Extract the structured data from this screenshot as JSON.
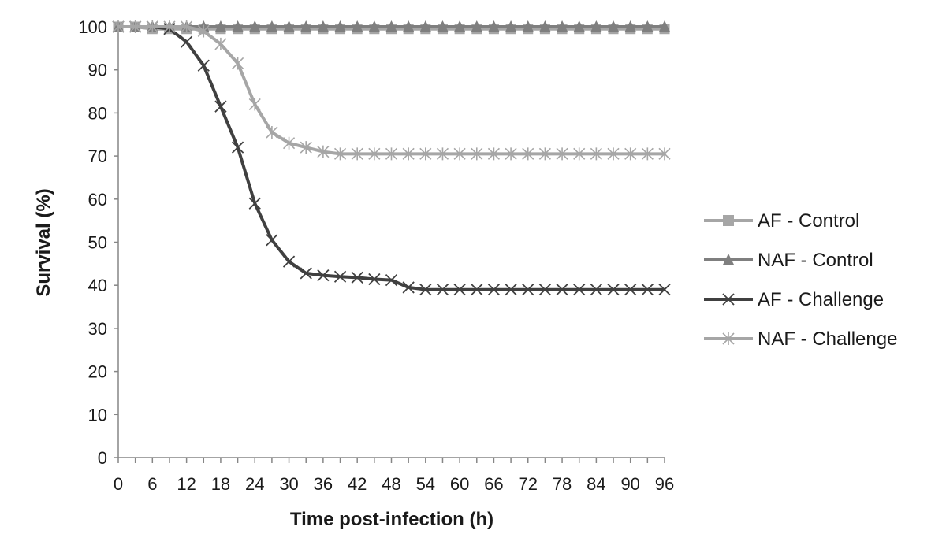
{
  "chart_data": {
    "type": "line",
    "title": "",
    "xlabel": "Time post-infection (h)",
    "ylabel": "Survival (%)",
    "xlim": [
      0,
      96
    ],
    "ylim": [
      0,
      100
    ],
    "x_ticks": [
      0,
      6,
      12,
      18,
      24,
      30,
      36,
      42,
      48,
      54,
      60,
      66,
      72,
      78,
      84,
      90,
      96
    ],
    "y_ticks": [
      0,
      10,
      20,
      30,
      40,
      50,
      60,
      70,
      80,
      90,
      100
    ],
    "x": [
      0,
      3,
      6,
      9,
      12,
      15,
      18,
      21,
      24,
      27,
      30,
      33,
      36,
      39,
      42,
      45,
      48,
      51,
      54,
      57,
      60,
      63,
      66,
      69,
      72,
      75,
      78,
      81,
      84,
      87,
      90,
      93,
      96
    ],
    "grid": false,
    "legend_position": "right",
    "series": [
      {
        "name": "AF - Control",
        "color": "#a6a6a6",
        "marker": "square",
        "values": [
          100,
          100,
          99.5,
          99.5,
          99.5,
          99.5,
          99.5,
          99.5,
          99.5,
          99.5,
          99.5,
          99.5,
          99.5,
          99.5,
          99.5,
          99.5,
          99.5,
          99.5,
          99.5,
          99.5,
          99.5,
          99.5,
          99.5,
          99.5,
          99.5,
          99.5,
          99.5,
          99.5,
          99.5,
          99.5,
          99.5,
          99.5,
          99.5
        ]
      },
      {
        "name": "NAF - Control",
        "color": "#7f7f7f",
        "marker": "triangle",
        "values": [
          100,
          100,
          100,
          100,
          100,
          100,
          100,
          100,
          100,
          100,
          100,
          100,
          100,
          100,
          100,
          100,
          100,
          100,
          100,
          100,
          100,
          100,
          100,
          100,
          100,
          100,
          100,
          100,
          100,
          100,
          100,
          100,
          100
        ]
      },
      {
        "name": "AF - Challenge",
        "color": "#404040",
        "marker": "x",
        "values": [
          100,
          100,
          100,
          99.5,
          96.5,
          91,
          81.5,
          72,
          59,
          50.5,
          45.5,
          42.8,
          42.3,
          42,
          41.8,
          41.4,
          41.2,
          39.5,
          39,
          39,
          39,
          39,
          39,
          39,
          39,
          39,
          39,
          39,
          39,
          39,
          39,
          39,
          39
        ]
      },
      {
        "name": "NAF - Challenge",
        "color": "#a6a6a6",
        "marker": "asterisk",
        "values": [
          100,
          100,
          100,
          100,
          100,
          99,
          96,
          91.5,
          82,
          75.5,
          73,
          72,
          71,
          70.5,
          70.5,
          70.5,
          70.5,
          70.5,
          70.5,
          70.5,
          70.5,
          70.5,
          70.5,
          70.5,
          70.5,
          70.5,
          70.5,
          70.5,
          70.5,
          70.5,
          70.5,
          70.5,
          70.5
        ]
      }
    ]
  }
}
